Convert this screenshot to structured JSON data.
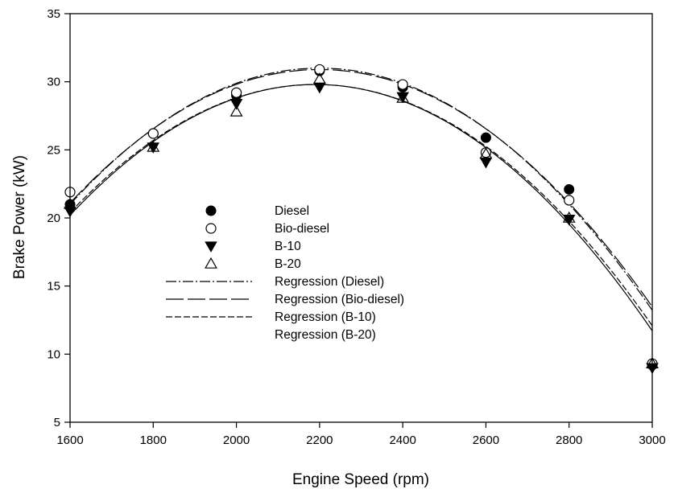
{
  "chart_data": {
    "type": "scatter",
    "xlabel": "Engine Speed (rpm)",
    "ylabel": "Brake Power (kW)",
    "xlim": [
      1600,
      3000
    ],
    "ylim": [
      5,
      35
    ],
    "xticks": [
      1600,
      1800,
      2000,
      2200,
      2400,
      2600,
      2800,
      3000
    ],
    "yticks": [
      5,
      10,
      15,
      20,
      25,
      30,
      35
    ],
    "grid": false,
    "legend_position": "center-left",
    "series": [
      {
        "name": "Diesel",
        "marker": "filled-circle",
        "x": [
          1600,
          1800,
          2000,
          2200,
          2400,
          2600,
          2800,
          3000
        ],
        "y": [
          21.0,
          26.2,
          29.0,
          30.8,
          29.6,
          25.9,
          22.1,
          9.2
        ]
      },
      {
        "name": "Bio-diesel",
        "marker": "open-circle",
        "x": [
          1600,
          1800,
          2000,
          2200,
          2400,
          2600,
          2800,
          3000
        ],
        "y": [
          21.9,
          26.2,
          29.2,
          30.9,
          29.8,
          24.8,
          21.3,
          9.3
        ]
      },
      {
        "name": "B-10",
        "marker": "filled-triangle-down",
        "x": [
          1600,
          1800,
          2000,
          2200,
          2400,
          2600,
          2800,
          3000
        ],
        "y": [
          20.5,
          25.2,
          28.4,
          29.6,
          28.9,
          24.1,
          19.9,
          9.0
        ]
      },
      {
        "name": "B-20",
        "marker": "open-triangle-up",
        "x": [
          1600,
          1800,
          2000,
          2200,
          2400,
          2600,
          2800,
          3000
        ],
        "y": [
          21.0,
          25.2,
          27.8,
          30.2,
          28.8,
          24.7,
          20.0,
          9.3
        ]
      }
    ],
    "regressions": [
      {
        "name": "Regression (Diesel)",
        "dash": "dash-dot",
        "vertex_x": 2200,
        "vertex_y": 31.0,
        "start_y": 21.0
      },
      {
        "name": "Regression (Bio-diesel)",
        "dash": "long-dash",
        "vertex_x": 2200,
        "vertex_y": 30.9,
        "start_y": 21.1
      },
      {
        "name": "Regression (B-10)",
        "dash": "short-dash",
        "vertex_x": 2190,
        "vertex_y": 29.8,
        "start_y": 20.4
      },
      {
        "name": "Regression (B-20)",
        "dash": "solid",
        "vertex_x": 2190,
        "vertex_y": 29.8,
        "start_y": 20.2
      }
    ]
  }
}
